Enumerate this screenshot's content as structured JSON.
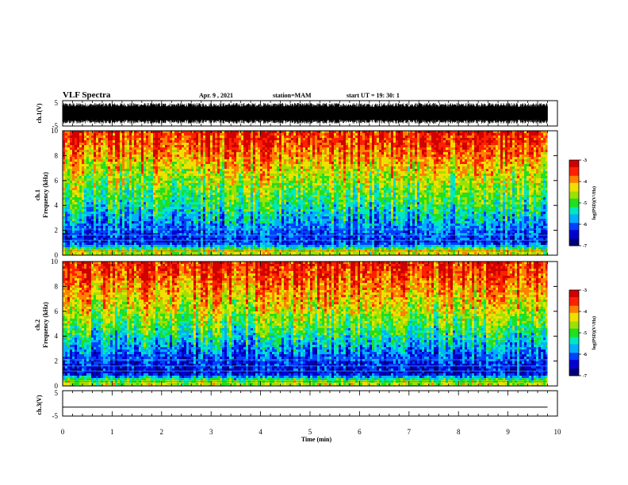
{
  "header": {
    "title": "VLF Spectra",
    "date": "Apr. 9 , 2021",
    "station": "station=MAM",
    "start": "start UT =  19: 30: 1"
  },
  "colors": {
    "spectrum": [
      "#00007a",
      "#0000d0",
      "#0040ff",
      "#00b0ff",
      "#00e8c0",
      "#20e020",
      "#a0e000",
      "#f0e000",
      "#ff8000",
      "#ff2000",
      "#d00000"
    ],
    "waveform": "#000000"
  },
  "chart_data": [
    {
      "type": "line",
      "name": "ch1-waveform",
      "ylabel": "ch.1(V)",
      "ylim": [
        -5,
        5
      ],
      "yticks": [
        "5",
        "-5"
      ],
      "xlim": [
        0,
        10
      ],
      "note_values": "dense black oscillation spanning roughly -4 to +4 V across 0-9.8 min"
    },
    {
      "type": "heatmap",
      "name": "ch1-spectrogram",
      "ylabel": "ch.1",
      "ylabel2": "Frequency (kHz)",
      "ylim": [
        0,
        10
      ],
      "yticks": [
        "0",
        "2",
        "4",
        "6",
        "8",
        "10"
      ],
      "xlim": [
        0,
        10
      ],
      "data_end_min": 9.8,
      "colorbar": {
        "label": "log(PSD)(V²/Hz)",
        "range": [
          -7,
          -3
        ],
        "ticks": [
          "-3",
          "-4",
          "-5",
          "-6",
          "-7"
        ]
      },
      "band_profile_log_psd": [
        {
          "freq_khz": 0.3,
          "value": -4.5
        },
        {
          "freq_khz": 1.0,
          "value": -6.3
        },
        {
          "freq_khz": 2.0,
          "value": -6.0
        },
        {
          "freq_khz": 3.0,
          "value": -5.6
        },
        {
          "freq_khz": 4.0,
          "value": -5.2
        },
        {
          "freq_khz": 5.0,
          "value": -4.9
        },
        {
          "freq_khz": 6.0,
          "value": -4.6
        },
        {
          "freq_khz": 7.0,
          "value": -4.3
        },
        {
          "freq_khz": 8.0,
          "value": -3.9
        },
        {
          "freq_khz": 9.0,
          "value": -3.6
        },
        {
          "freq_khz": 10.0,
          "value": -3.4
        }
      ]
    },
    {
      "type": "heatmap",
      "name": "ch2-spectrogram",
      "ylabel": "ch.2",
      "ylabel2": "Frequency (kHz)",
      "ylim": [
        0,
        10
      ],
      "yticks": [
        "0",
        "2",
        "4",
        "6",
        "8",
        "10"
      ],
      "xlim": [
        0,
        10
      ],
      "data_end_min": 9.8,
      "colorbar": {
        "label": "log(PSD)(V²/Hz)",
        "range": [
          -7,
          -3
        ],
        "ticks": [
          "-3",
          "-4",
          "-5",
          "-6",
          "-7"
        ]
      },
      "band_profile_log_psd": [
        {
          "freq_khz": 0.3,
          "value": -4.6
        },
        {
          "freq_khz": 1.0,
          "value": -6.5
        },
        {
          "freq_khz": 2.0,
          "value": -6.2
        },
        {
          "freq_khz": 3.0,
          "value": -5.8
        },
        {
          "freq_khz": 4.0,
          "value": -5.3
        },
        {
          "freq_khz": 5.0,
          "value": -4.9
        },
        {
          "freq_khz": 6.0,
          "value": -4.5
        },
        {
          "freq_khz": 7.0,
          "value": -4.2
        },
        {
          "freq_khz": 8.0,
          "value": -3.9
        },
        {
          "freq_khz": 9.0,
          "value": -3.6
        },
        {
          "freq_khz": 10.0,
          "value": -3.4
        }
      ]
    },
    {
      "type": "line",
      "name": "ch3-waveform",
      "ylabel": "ch.3(V)",
      "ylim": [
        -5,
        5
      ],
      "yticks": [
        "5",
        "-5"
      ],
      "xlim": [
        0,
        10
      ],
      "value_constant_v": -1.5
    }
  ],
  "xaxis": {
    "label": "Time (min)",
    "ticks": [
      "0",
      "1",
      "2",
      "3",
      "4",
      "5",
      "6",
      "7",
      "8",
      "9",
      "10"
    ]
  }
}
